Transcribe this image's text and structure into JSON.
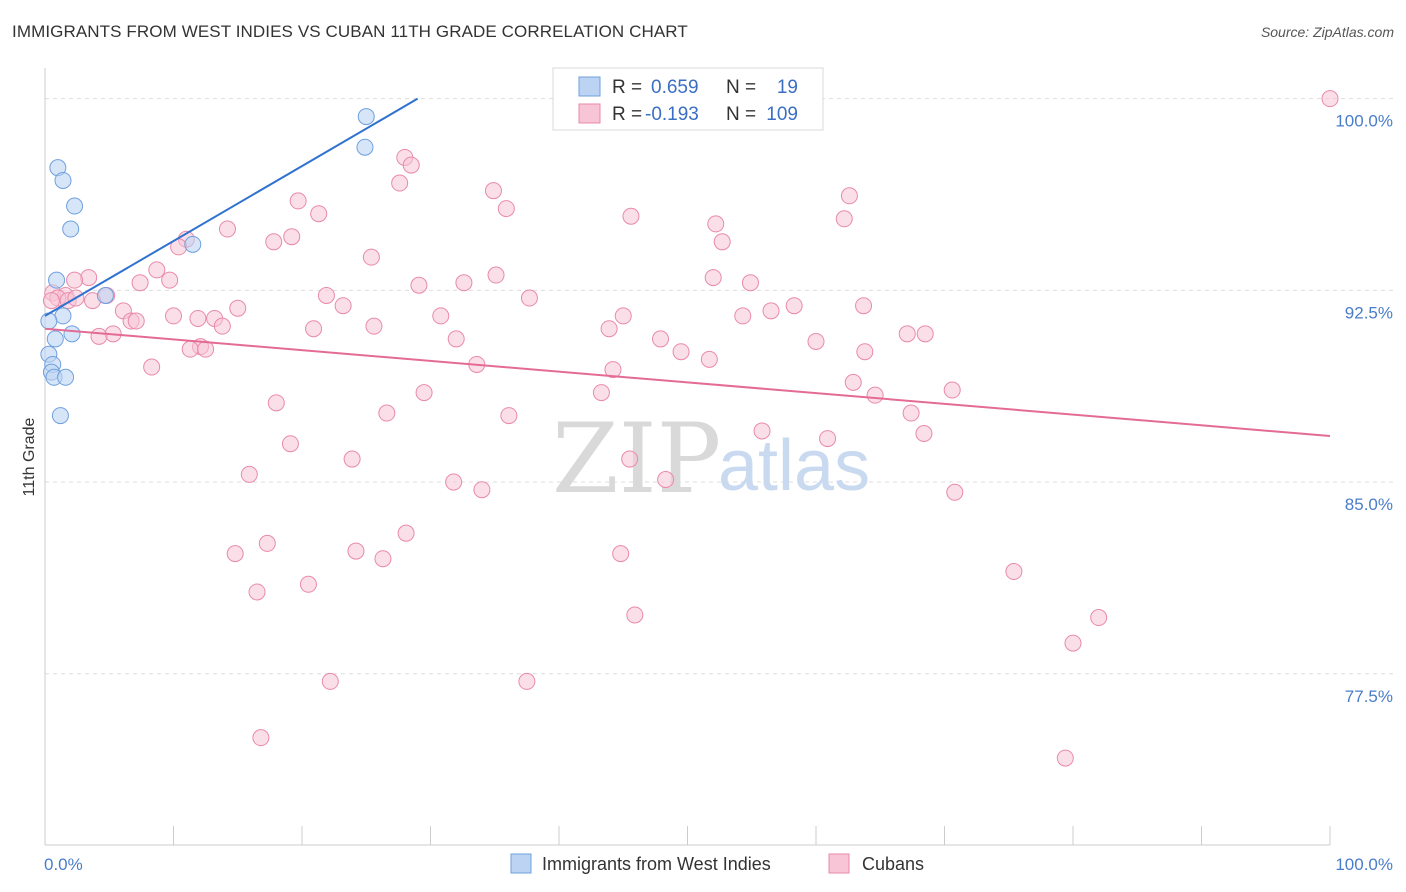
{
  "title": "IMMIGRANTS FROM WEST INDIES VS CUBAN 11TH GRADE CORRELATION CHART",
  "source": "Source: ZipAtlas.com",
  "watermark": {
    "zip": "ZIP",
    "atlas": "atlas"
  },
  "colors": {
    "blue": "#6fa0de",
    "blue_fill": "#bcd3f3",
    "blue_line": "#2f72cf",
    "pink": "#e98aa9",
    "pink_fill": "#f7c5d5",
    "pink_line": "#e46b96",
    "grid": "#dddddd",
    "tick_label": "#4a7dc9"
  },
  "legend": {
    "r_label": "R =",
    "n_label": "N =",
    "series": [
      {
        "name": "Immigrants from West Indies",
        "r": "0.659",
        "n": "19"
      },
      {
        "name": "Cubans",
        "r": "-0.193",
        "n": "109"
      }
    ]
  },
  "chart_data": {
    "type": "scatter",
    "title": "IMMIGRANTS FROM WEST INDIES VS CUBAN 11TH GRADE CORRELATION CHART",
    "xlabel": "",
    "ylabel": "11th Grade",
    "xlim": [
      0,
      100
    ],
    "ylim": [
      70.8,
      101.2
    ],
    "x_tick_labels": {
      "left": "0.0%",
      "right": "100.0%"
    },
    "y_ticks": [
      {
        "value": 100.0,
        "label": "100.0%"
      },
      {
        "value": 92.5,
        "label": "92.5%"
      },
      {
        "value": 85.0,
        "label": "85.0%"
      },
      {
        "value": 77.5,
        "label": "77.5%"
      }
    ],
    "series": [
      {
        "name": "Immigrants from West Indies",
        "color": "blue",
        "trend": {
          "x0": 0.0,
          "y0": 91.5,
          "x1": 29.0,
          "y1": 100.0
        },
        "points": [
          [
            25.0,
            99.3
          ],
          [
            24.9,
            98.1
          ],
          [
            1.0,
            97.3
          ],
          [
            1.4,
            96.8
          ],
          [
            2.3,
            95.8
          ],
          [
            2.0,
            94.9
          ],
          [
            11.5,
            94.3
          ],
          [
            0.9,
            92.9
          ],
          [
            4.7,
            92.3
          ],
          [
            1.4,
            91.5
          ],
          [
            0.3,
            91.3
          ],
          [
            2.1,
            90.8
          ],
          [
            0.8,
            90.6
          ],
          [
            0.3,
            90.0
          ],
          [
            0.6,
            89.6
          ],
          [
            0.5,
            89.3
          ],
          [
            0.7,
            89.1
          ],
          [
            1.6,
            89.1
          ],
          [
            1.2,
            87.6
          ]
        ]
      },
      {
        "name": "Cubans",
        "color": "pink",
        "trend": {
          "x0": 0.0,
          "y0": 91.0,
          "x1": 100.0,
          "y1": 86.8
        },
        "points": [
          [
            100.0,
            100.0
          ],
          [
            28.0,
            97.7
          ],
          [
            28.5,
            97.4
          ],
          [
            27.6,
            96.7
          ],
          [
            34.9,
            96.4
          ],
          [
            62.6,
            96.2
          ],
          [
            19.7,
            96.0
          ],
          [
            35.9,
            95.7
          ],
          [
            21.3,
            95.5
          ],
          [
            45.6,
            95.4
          ],
          [
            62.2,
            95.3
          ],
          [
            52.2,
            95.1
          ],
          [
            14.2,
            94.9
          ],
          [
            19.2,
            94.6
          ],
          [
            11.0,
            94.5
          ],
          [
            17.8,
            94.4
          ],
          [
            52.7,
            94.4
          ],
          [
            10.4,
            94.2
          ],
          [
            25.4,
            93.8
          ],
          [
            8.7,
            93.3
          ],
          [
            35.1,
            93.1
          ],
          [
            3.4,
            93.0
          ],
          [
            9.7,
            92.9
          ],
          [
            2.3,
            92.9
          ],
          [
            7.4,
            92.8
          ],
          [
            32.6,
            92.8
          ],
          [
            54.9,
            92.8
          ],
          [
            29.1,
            92.7
          ],
          [
            0.6,
            92.4
          ],
          [
            1.6,
            92.3
          ],
          [
            4.8,
            92.3
          ],
          [
            21.9,
            92.3
          ],
          [
            37.7,
            92.2
          ],
          [
            1.0,
            92.2
          ],
          [
            3.7,
            92.1
          ],
          [
            0.5,
            92.1
          ],
          [
            1.8,
            92.1
          ],
          [
            2.4,
            92.2
          ],
          [
            23.2,
            91.9
          ],
          [
            58.3,
            91.9
          ],
          [
            63.7,
            91.9
          ],
          [
            15.0,
            91.8
          ],
          [
            6.1,
            91.7
          ],
          [
            10.0,
            91.5
          ],
          [
            45.0,
            91.5
          ],
          [
            54.3,
            91.5
          ],
          [
            56.5,
            91.7
          ],
          [
            30.8,
            91.5
          ],
          [
            11.9,
            91.4
          ],
          [
            13.2,
            91.4
          ],
          [
            6.7,
            91.3
          ],
          [
            7.1,
            91.3
          ],
          [
            13.8,
            91.1
          ],
          [
            25.6,
            91.1
          ],
          [
            43.9,
            91.0
          ],
          [
            20.9,
            91.0
          ],
          [
            5.3,
            90.8
          ],
          [
            4.2,
            90.7
          ],
          [
            67.1,
            90.8
          ],
          [
            68.5,
            90.8
          ],
          [
            32.0,
            90.6
          ],
          [
            47.9,
            90.6
          ],
          [
            60.0,
            90.5
          ],
          [
            12.1,
            90.3
          ],
          [
            11.3,
            90.2
          ],
          [
            12.5,
            90.2
          ],
          [
            49.5,
            90.1
          ],
          [
            63.8,
            90.1
          ],
          [
            51.7,
            89.8
          ],
          [
            33.6,
            89.6
          ],
          [
            8.3,
            89.5
          ],
          [
            44.2,
            89.4
          ],
          [
            62.9,
            88.9
          ],
          [
            70.6,
            88.6
          ],
          [
            29.5,
            88.5
          ],
          [
            43.3,
            88.5
          ],
          [
            64.6,
            88.4
          ],
          [
            18.0,
            88.1
          ],
          [
            26.6,
            87.7
          ],
          [
            36.1,
            87.6
          ],
          [
            67.4,
            87.7
          ],
          [
            55.8,
            87.0
          ],
          [
            68.4,
            86.9
          ],
          [
            60.9,
            86.7
          ],
          [
            19.1,
            86.5
          ],
          [
            23.9,
            85.9
          ],
          [
            45.5,
            85.9
          ],
          [
            15.9,
            85.3
          ],
          [
            31.8,
            85.0
          ],
          [
            34.0,
            84.7
          ],
          [
            48.3,
            85.1
          ],
          [
            70.8,
            84.6
          ],
          [
            28.1,
            83.0
          ],
          [
            17.3,
            82.6
          ],
          [
            24.2,
            82.3
          ],
          [
            14.8,
            82.2
          ],
          [
            44.8,
            82.2
          ],
          [
            26.3,
            82.0
          ],
          [
            75.4,
            81.5
          ],
          [
            20.5,
            81.0
          ],
          [
            16.5,
            80.7
          ],
          [
            45.9,
            79.8
          ],
          [
            82.0,
            79.7
          ],
          [
            80.0,
            78.7
          ],
          [
            22.2,
            77.2
          ],
          [
            37.5,
            77.2
          ],
          [
            16.8,
            75.0
          ],
          [
            79.4,
            74.2
          ],
          [
            52.0,
            93.0
          ]
        ]
      }
    ]
  }
}
